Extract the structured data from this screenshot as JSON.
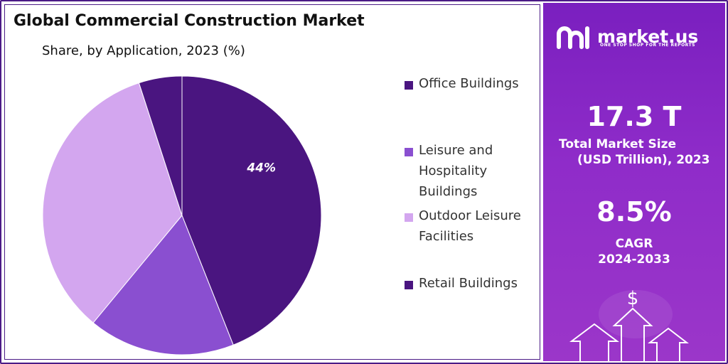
{
  "chart": {
    "title": "Global Commercial Construction Market",
    "subtitle": "Share, by Application, 2023 (%)"
  },
  "chart_data": {
    "type": "pie",
    "title": "Global Commercial Construction Market",
    "subtitle": "Share, by Application, 2023 (%)",
    "categories": [
      "Office Buildings",
      "Leisure and Hospitality Buildings",
      "Outdoor Leisure Facilities",
      "Retail Buildings"
    ],
    "values": [
      44,
      17,
      34,
      5
    ],
    "colors": [
      "#4a1580",
      "#8a4fd0",
      "#d3a6ef",
      "#4a1580"
    ],
    "data_labels": [
      "44%",
      "",
      "",
      ""
    ],
    "legend_position": "right"
  },
  "legend": {
    "items": [
      {
        "line1": "Office Buildings",
        "line2": "",
        "line3": "",
        "color": "#4a1580"
      },
      {
        "line1": "Leisure and",
        "line2": "Hospitality",
        "line3": "Buildings",
        "color": "#8a4fd0"
      },
      {
        "line1": "Outdoor Leisure",
        "line2": "Facilities",
        "line3": "",
        "color": "#d3a6ef"
      },
      {
        "line1": "Retail Buildings",
        "line2": "",
        "line3": "",
        "color": "#4a1580"
      }
    ]
  },
  "side": {
    "brand_name": "market.us",
    "brand_tagline": "ONE STOP SHOP FOR THE REPORTS",
    "market_size_value": "17.3 T",
    "market_size_label_1": "Total Market Size",
    "market_size_label_2": "(USD Trillion), 2023",
    "cagr_value": "8.5%",
    "cagr_label_1": "CAGR",
    "cagr_label_2": "2024-2033",
    "dollar_symbol": "$",
    "colors": {
      "panel": "#8a2bc6",
      "text": "#ffffff"
    }
  }
}
